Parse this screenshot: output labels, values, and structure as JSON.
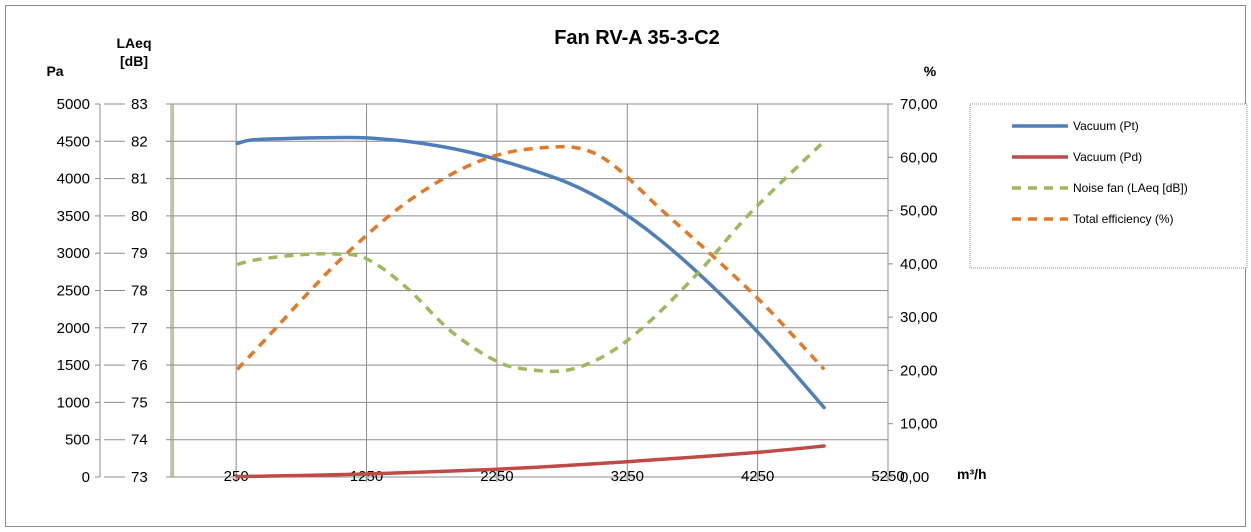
{
  "chart_data": {
    "type": "line",
    "title": "Fan RV-A 35-3-C2",
    "xlabel": "m³/h",
    "xlim": [
      -250,
      5250
    ],
    "xticks": [
      "250",
      "1250",
      "2250",
      "3250",
      "4250",
      "5250"
    ],
    "y_pa": {
      "title": "Pa",
      "ylim": [
        0,
        5000
      ],
      "ticks": [
        "0",
        "500",
        "1000",
        "1500",
        "2000",
        "2500",
        "3000",
        "3500",
        "4000",
        "4500",
        "5000"
      ]
    },
    "y_laeq": {
      "title_line1": "LAeq",
      "title_line2": "[dB]",
      "ylim": [
        73,
        83
      ],
      "ticks": [
        "73",
        "74",
        "75",
        "76",
        "77",
        "78",
        "79",
        "80",
        "81",
        "82",
        "83"
      ]
    },
    "y_pct": {
      "title": "%",
      "ylim": [
        0,
        70
      ],
      "ticks": [
        "0,00",
        "10,00",
        "20,00",
        "30,00",
        "40,00",
        "50,00",
        "60,00",
        "70,00"
      ]
    },
    "grid": true,
    "legend_position": "right",
    "series": [
      {
        "name": "Vacuum (Pt)",
        "axis": "pa",
        "color": "#4f7fbb",
        "style": "solid",
        "x": [
          258,
          380,
          700,
          1000,
          1250,
          1600,
          2000,
          2400,
          2800,
          3150,
          3500,
          3900,
          4300,
          4760
        ],
        "y": [
          4470,
          4520,
          4540,
          4550,
          4545,
          4490,
          4370,
          4180,
          3940,
          3620,
          3180,
          2560,
          1850,
          930
        ]
      },
      {
        "name": "Vacuum (Pd)",
        "axis": "pa",
        "color": "#be4b48",
        "style": "solid",
        "x": [
          258,
          750,
          1250,
          1750,
          2250,
          2750,
          3250,
          3750,
          4250,
          4760
        ],
        "y": [
          5,
          20,
          40,
          70,
          105,
          150,
          205,
          265,
          330,
          415
        ]
      },
      {
        "name": "Noise fan (LAeq [dB])",
        "axis": "laeq",
        "color": "#9bbb59",
        "style": "dashed",
        "x": [
          258,
          400,
          700,
          1000,
          1250,
          1550,
          1900,
          2250,
          2500,
          2800,
          3100,
          3400,
          3800,
          4200,
          4760
        ],
        "y": [
          78.7,
          78.82,
          78.95,
          78.98,
          78.85,
          78.1,
          76.9,
          76.1,
          75.88,
          75.87,
          76.3,
          77.1,
          78.5,
          80.1,
          82.0
        ]
      },
      {
        "name": "Total efficiency (%)",
        "axis": "pct",
        "color": "#e87722",
        "style": "dashed",
        "x": [
          258,
          500,
          800,
          1100,
          1500,
          1900,
          2250,
          2600,
          2900,
          3150,
          3500,
          3900,
          4300,
          4760
        ],
        "y": [
          20.2,
          26.5,
          34.5,
          42.0,
          50.5,
          56.8,
          60.4,
          61.8,
          61.6,
          58.4,
          50.4,
          41.6,
          32.3,
          20.2
        ]
      }
    ]
  }
}
